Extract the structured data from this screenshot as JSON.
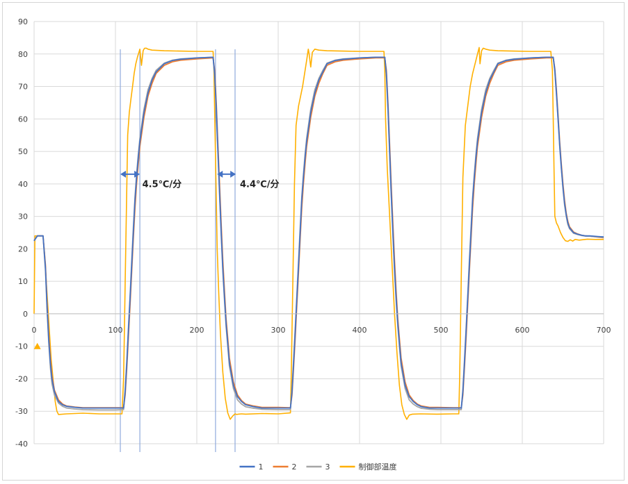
{
  "chart_data": {
    "type": "line",
    "title": "",
    "xlabel": "",
    "ylabel": "",
    "xlim": [
      0,
      700
    ],
    "ylim": [
      -40,
      90
    ],
    "x_ticks": [
      0,
      100,
      200,
      300,
      400,
      500,
      600,
      700
    ],
    "y_ticks": [
      -40,
      -30,
      -20,
      -10,
      0,
      10,
      20,
      30,
      40,
      50,
      60,
      70,
      80,
      90
    ],
    "grid": true,
    "legend_position": "bottom",
    "colors": {
      "series1": "#4472c4",
      "series2": "#ed7d31",
      "series3": "#a5a5a5",
      "control": "#ffb000",
      "marker_lines": "#8faadc",
      "arrow": "#4472c4",
      "grid": "#d9d9d9"
    },
    "annotations": [
      {
        "text": "4.5℃/分",
        "x": 133,
        "y": 39
      },
      {
        "text": "4.4℃/分",
        "x": 253,
        "y": 39
      }
    ],
    "rate_arrows": [
      {
        "x1": 106,
        "x2": 130,
        "y": 43
      },
      {
        "x1": 225,
        "x2": 248,
        "y": 43
      }
    ],
    "vertical_markers": [
      106,
      130,
      223,
      247
    ],
    "start_marker": {
      "x": 4,
      "y": -10,
      "shape": "triangle"
    },
    "series": [
      {
        "name": "1",
        "x": [
          0,
          4,
          11,
          14,
          16,
          18,
          20,
          22,
          25,
          30,
          35,
          40,
          50,
          60,
          80,
          100,
          110,
          112,
          114,
          116,
          118,
          120,
          122,
          124,
          126,
          128,
          130,
          135,
          140,
          145,
          150,
          160,
          170,
          180,
          200,
          220,
          222,
          224,
          226,
          228,
          230,
          232,
          234,
          236,
          238,
          240,
          245,
          250,
          255,
          260,
          270,
          280,
          300,
          315,
          317,
          319,
          321,
          323,
          325,
          327,
          329,
          331,
          333,
          335,
          340,
          345,
          350,
          355,
          360,
          370,
          380,
          400,
          420,
          431,
          433,
          435,
          437,
          439,
          441,
          443,
          445,
          447,
          449,
          451,
          456,
          461,
          466,
          471,
          476,
          486,
          496,
          515,
          525,
          527,
          529,
          531,
          533,
          535,
          537,
          539,
          541,
          543,
          545,
          550,
          555,
          560,
          565,
          570,
          580,
          590,
          610,
          630,
          638,
          640,
          642,
          644,
          646,
          648,
          650,
          652,
          654,
          656,
          658,
          663,
          668,
          673,
          678,
          683,
          693,
          700
        ],
        "values": [
          22.5,
          24.0,
          24.0,
          14.0,
          2.0,
          -8.0,
          -15.0,
          -20.0,
          -24.0,
          -27.0,
          -28.0,
          -28.5,
          -28.8,
          -29.0,
          -29.0,
          -29.0,
          -29.0,
          -24.0,
          -15.0,
          -5.0,
          5.0,
          15.0,
          25.0,
          35.0,
          42.0,
          48.0,
          53.0,
          62.0,
          68.0,
          72.0,
          74.5,
          77.0,
          78.0,
          78.4,
          78.8,
          79.0,
          74.0,
          63.0,
          50.0,
          37.0,
          25.0,
          14.0,
          5.0,
          -3.0,
          -9.0,
          -15.0,
          -22.0,
          -25.5,
          -27.0,
          -28.0,
          -28.6,
          -29.0,
          -29.0,
          -29.0,
          -24.0,
          -15.0,
          -5.0,
          5.0,
          15.0,
          25.0,
          35.0,
          42.0,
          48.0,
          53.0,
          62.0,
          68.0,
          72.0,
          74.5,
          77.0,
          78.0,
          78.4,
          78.8,
          79.0,
          79.0,
          74.0,
          63.0,
          50.0,
          37.0,
          25.0,
          14.0,
          5.0,
          -3.0,
          -9.0,
          -15.0,
          -22.0,
          -25.5,
          -27.0,
          -28.0,
          -28.6,
          -29.0,
          -29.0,
          -29.0,
          -29.0,
          -24.0,
          -15.0,
          -5.0,
          5.0,
          15.0,
          25.0,
          35.0,
          42.0,
          48.0,
          53.0,
          62.0,
          68.0,
          72.0,
          74.5,
          77.0,
          78.0,
          78.4,
          78.8,
          79.0,
          79.0,
          75.0,
          68.0,
          60.0,
          52.0,
          45.0,
          39.0,
          34.0,
          30.5,
          28.0,
          26.5,
          25.0,
          24.5,
          24.2,
          24.0,
          24.0,
          23.8,
          23.7
        ]
      },
      {
        "name": "2",
        "x": [
          0,
          4,
          11,
          14,
          16,
          18,
          20,
          22,
          25,
          30,
          35,
          40,
          50,
          60,
          80,
          100,
          110,
          112,
          114,
          116,
          118,
          120,
          122,
          124,
          126,
          128,
          130,
          135,
          140,
          145,
          150,
          160,
          170,
          180,
          200,
          220,
          222,
          224,
          226,
          228,
          230,
          232,
          234,
          236,
          238,
          240,
          245,
          250,
          255,
          260,
          270,
          280,
          300,
          315,
          317,
          319,
          321,
          323,
          325,
          327,
          329,
          331,
          333,
          335,
          340,
          345,
          350,
          355,
          360,
          370,
          380,
          400,
          420,
          431,
          433,
          435,
          437,
          439,
          441,
          443,
          445,
          447,
          449,
          451,
          456,
          461,
          466,
          471,
          476,
          486,
          496,
          515,
          525,
          527,
          529,
          531,
          533,
          535,
          537,
          539,
          541,
          543,
          545,
          550,
          555,
          560,
          565,
          570,
          580,
          590,
          610,
          630,
          638,
          640,
          642,
          644,
          646,
          648,
          650,
          652,
          654,
          656,
          658,
          663,
          668,
          673,
          678,
          683,
          693,
          700
        ],
        "values": [
          22.5,
          24.0,
          24.0,
          15.0,
          3.5,
          -6.5,
          -13.5,
          -19.0,
          -23.5,
          -26.5,
          -27.8,
          -28.4,
          -28.7,
          -28.9,
          -28.9,
          -28.9,
          -28.9,
          -25.0,
          -16.5,
          -7.0,
          3.0,
          13.0,
          23.0,
          32.5,
          40.0,
          46.0,
          51.5,
          60.5,
          67.0,
          71.0,
          74.0,
          76.5,
          77.6,
          78.1,
          78.5,
          78.8,
          75.0,
          64.5,
          52.0,
          39.5,
          27.5,
          16.5,
          7.0,
          -1.5,
          -7.5,
          -13.5,
          -21.0,
          -25.0,
          -26.7,
          -27.8,
          -28.4,
          -28.8,
          -28.8,
          -28.9,
          -25.0,
          -16.5,
          -7.0,
          3.0,
          13.0,
          23.0,
          32.5,
          40.0,
          46.0,
          51.5,
          60.5,
          67.0,
          71.0,
          74.0,
          76.5,
          77.6,
          78.1,
          78.5,
          78.8,
          78.8,
          75.0,
          64.5,
          52.0,
          39.5,
          27.5,
          16.5,
          7.0,
          -1.5,
          -7.5,
          -13.5,
          -21.0,
          -25.0,
          -26.7,
          -27.8,
          -28.4,
          -28.8,
          -28.8,
          -28.9,
          -28.9,
          -25.0,
          -16.5,
          -7.0,
          3.0,
          13.0,
          23.0,
          32.5,
          40.0,
          46.0,
          51.5,
          60.5,
          67.0,
          71.0,
          74.0,
          76.5,
          77.6,
          78.1,
          78.5,
          78.8,
          78.8,
          75.5,
          69.0,
          61.0,
          53.0,
          46.0,
          40.0,
          35.0,
          31.0,
          28.5,
          26.8,
          25.2,
          24.6,
          24.2,
          24.0,
          23.9,
          23.6,
          23.4
        ]
      },
      {
        "name": "3",
        "x": [
          0,
          4,
          11,
          14,
          16,
          18,
          20,
          22,
          25,
          30,
          35,
          40,
          50,
          60,
          80,
          100,
          110,
          112,
          114,
          116,
          118,
          120,
          122,
          124,
          126,
          128,
          130,
          135,
          140,
          145,
          150,
          160,
          170,
          180,
          200,
          220,
          222,
          224,
          226,
          228,
          230,
          232,
          234,
          236,
          238,
          240,
          245,
          250,
          255,
          260,
          270,
          280,
          300,
          315,
          317,
          319,
          321,
          323,
          325,
          327,
          329,
          331,
          333,
          335,
          340,
          345,
          350,
          355,
          360,
          370,
          380,
          400,
          420,
          431,
          433,
          435,
          437,
          439,
          441,
          443,
          445,
          447,
          449,
          451,
          456,
          461,
          466,
          471,
          476,
          486,
          496,
          515,
          525,
          527,
          529,
          531,
          533,
          535,
          537,
          539,
          541,
          543,
          545,
          550,
          555,
          560,
          565,
          570,
          580,
          590,
          610,
          630,
          638,
          640,
          642,
          644,
          646,
          648,
          650,
          652,
          654,
          656,
          658,
          663,
          668,
          673,
          678,
          683,
          693,
          700
        ],
        "values": [
          22.5,
          24.0,
          24.0,
          13.0,
          1.0,
          -9.0,
          -16.5,
          -21.5,
          -25.0,
          -27.5,
          -28.5,
          -29.0,
          -29.3,
          -29.5,
          -29.6,
          -29.6,
          -29.5,
          -23.0,
          -14.0,
          -4.0,
          6.0,
          16.5,
          26.5,
          36.0,
          43.0,
          49.0,
          54.0,
          63.0,
          69.0,
          72.5,
          75.0,
          77.2,
          78.1,
          78.5,
          78.8,
          79.0,
          73.0,
          62.0,
          49.0,
          36.0,
          24.0,
          13.0,
          4.0,
          -4.0,
          -10.0,
          -16.0,
          -23.0,
          -26.5,
          -27.8,
          -28.6,
          -29.1,
          -29.4,
          -29.5,
          -29.5,
          -23.0,
          -14.0,
          -4.0,
          6.0,
          16.5,
          26.5,
          36.0,
          43.0,
          49.0,
          54.0,
          63.0,
          69.0,
          72.5,
          75.0,
          77.2,
          78.1,
          78.5,
          78.8,
          79.0,
          79.0,
          73.0,
          62.0,
          49.0,
          36.0,
          24.0,
          13.0,
          4.0,
          -4.0,
          -10.0,
          -16.0,
          -23.0,
          -26.5,
          -27.8,
          -28.6,
          -29.1,
          -29.4,
          -29.5,
          -29.5,
          -29.5,
          -23.0,
          -14.0,
          -4.0,
          6.0,
          16.5,
          26.5,
          36.0,
          43.0,
          49.0,
          54.0,
          63.0,
          69.0,
          72.5,
          75.0,
          77.2,
          78.1,
          78.5,
          78.8,
          79.0,
          79.0,
          74.5,
          67.5,
          59.5,
          51.5,
          44.5,
          38.5,
          33.5,
          30.0,
          27.5,
          26.2,
          24.8,
          24.4,
          24.1,
          23.9,
          23.9,
          23.7,
          23.5
        ]
      },
      {
        "name": "制御部温度",
        "x": [
          0,
          1,
          3,
          11,
          13,
          15,
          17,
          19,
          21,
          24,
          26,
          28,
          30,
          40,
          60,
          80,
          108,
          110,
          111,
          112,
          113,
          114,
          115,
          117,
          119,
          121,
          123,
          125,
          127,
          130,
          132,
          134,
          135,
          136,
          138,
          140,
          145,
          160,
          180,
          200,
          210,
          220,
          221,
          222,
          223,
          224,
          225,
          227,
          229,
          232,
          235,
          238,
          241,
          244,
          247,
          249,
          251,
          255,
          260,
          280,
          300,
          315,
          316,
          317,
          318,
          320,
          322,
          325,
          330,
          335,
          337,
          338,
          340,
          342,
          345,
          350,
          360,
          380,
          400,
          430,
          431,
          432,
          434,
          437,
          440,
          443,
          446,
          449,
          452,
          455,
          458,
          461,
          465,
          475,
          495,
          515,
          522,
          523,
          524,
          525,
          527,
          530,
          533,
          536,
          539,
          542,
          545,
          547,
          548,
          550,
          552,
          555,
          560,
          570,
          590,
          610,
          635,
          637,
          638,
          639,
          640,
          642,
          644,
          647,
          650,
          653,
          656,
          659,
          662,
          665,
          670,
          680,
          690,
          700
        ],
        "values": [
          0.0,
          24.0,
          24.0,
          24.0,
          18.0,
          10.0,
          2.0,
          -6.0,
          -14.0,
          -22.0,
          -27.0,
          -30.0,
          -31.0,
          -30.8,
          -30.6,
          -30.8,
          -30.8,
          -20.0,
          -5.0,
          10.0,
          25.0,
          40.0,
          55.0,
          62.0,
          66.0,
          70.0,
          74.0,
          77.0,
          79.0,
          81.5,
          76.5,
          81.0,
          81.5,
          81.8,
          81.8,
          81.5,
          81.2,
          81.0,
          80.9,
          80.8,
          80.8,
          80.8,
          75.0,
          62.0,
          48.0,
          34.0,
          20.0,
          6.0,
          -6.0,
          -18.0,
          -26.0,
          -30.5,
          -32.5,
          -31.5,
          -30.8,
          -31.0,
          -30.9,
          -30.8,
          -30.9,
          -30.7,
          -30.8,
          -30.5,
          -20.0,
          -5.0,
          10.0,
          40.0,
          58.0,
          64.0,
          70.0,
          78.0,
          81.5,
          80.0,
          76.0,
          80.5,
          81.5,
          81.2,
          81.0,
          80.9,
          80.8,
          80.8,
          75.0,
          60.0,
          45.0,
          30.0,
          15.0,
          0.0,
          -12.0,
          -22.0,
          -28.0,
          -31.0,
          -32.5,
          -31.2,
          -30.9,
          -30.8,
          -30.9,
          -30.8,
          -30.8,
          -20.0,
          -5.0,
          12.0,
          42.0,
          58.0,
          64.0,
          70.0,
          74.0,
          77.0,
          80.0,
          82.0,
          77.0,
          81.0,
          81.8,
          81.5,
          81.2,
          81.0,
          80.9,
          80.8,
          80.8,
          75.0,
          60.0,
          45.0,
          30.0,
          28.0,
          27.0,
          25.0,
          23.5,
          22.5,
          22.3,
          22.8,
          22.4,
          22.9,
          22.7,
          23.0,
          22.9,
          22.9
        ]
      }
    ]
  }
}
